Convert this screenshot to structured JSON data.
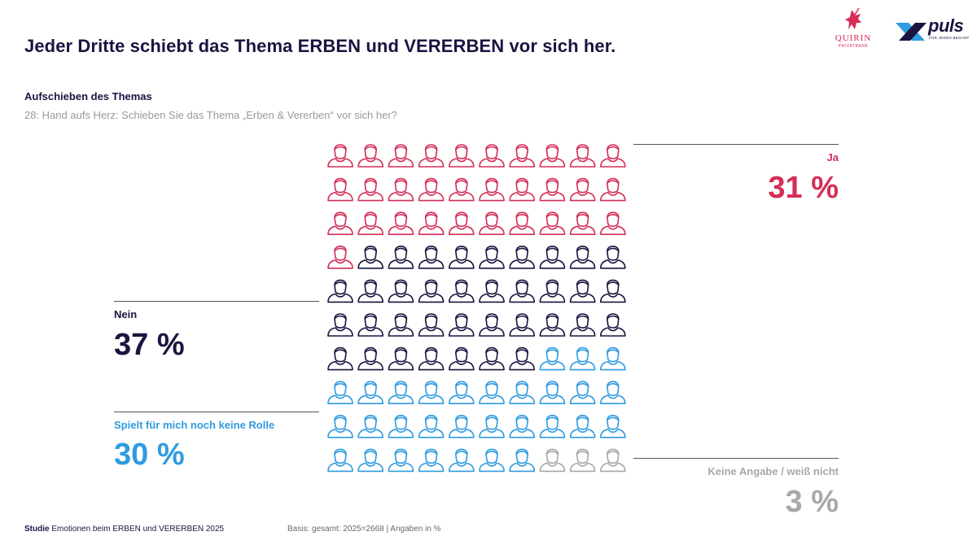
{
  "header": {
    "title": "Jeder Dritte schiebt das Thema ERBEN und VERERBEN vor sich her.",
    "subtitle": "Aufschieben des Themas",
    "question": "28: Hand aufs Herz: Schieben Sie das Thema „Erben & Vererben“ vor sich her?"
  },
  "logos": {
    "quirin": {
      "name": "QUIRIN",
      "sub": "PRIVATBANK",
      "icon": "unicorn-icon"
    },
    "puls": {
      "name": "puls",
      "sub": "FÜR JEDEN BEDARF",
      "icon": "x-mark-icon"
    }
  },
  "chart_data": {
    "type": "icon-array",
    "total_icons": 100,
    "columns": 10,
    "rows": 10,
    "categories": [
      {
        "label": "Ja",
        "value": 31,
        "value_label": "31 %",
        "color": "#d42d56",
        "icons": 31
      },
      {
        "label": "Nein",
        "value": 37,
        "value_label": "37 %",
        "color": "#1b1440",
        "icons": 36
      },
      {
        "label": "Spielt für mich noch keine Rolle",
        "value": 30,
        "value_label": "30 %",
        "color": "#2f9be0",
        "icons": 30
      },
      {
        "label": "Keine Angabe / weiß nicht",
        "value": 3,
        "value_label": "3 %",
        "color": "#a8a8a8",
        "icons": 3
      }
    ]
  },
  "footer": {
    "study_label": "Studie",
    "study_name": "Emotionen beim ERBEN und VERERBEN 2025",
    "basis": "Basis: gesamt: 2025=2668 | Angaben in %"
  }
}
